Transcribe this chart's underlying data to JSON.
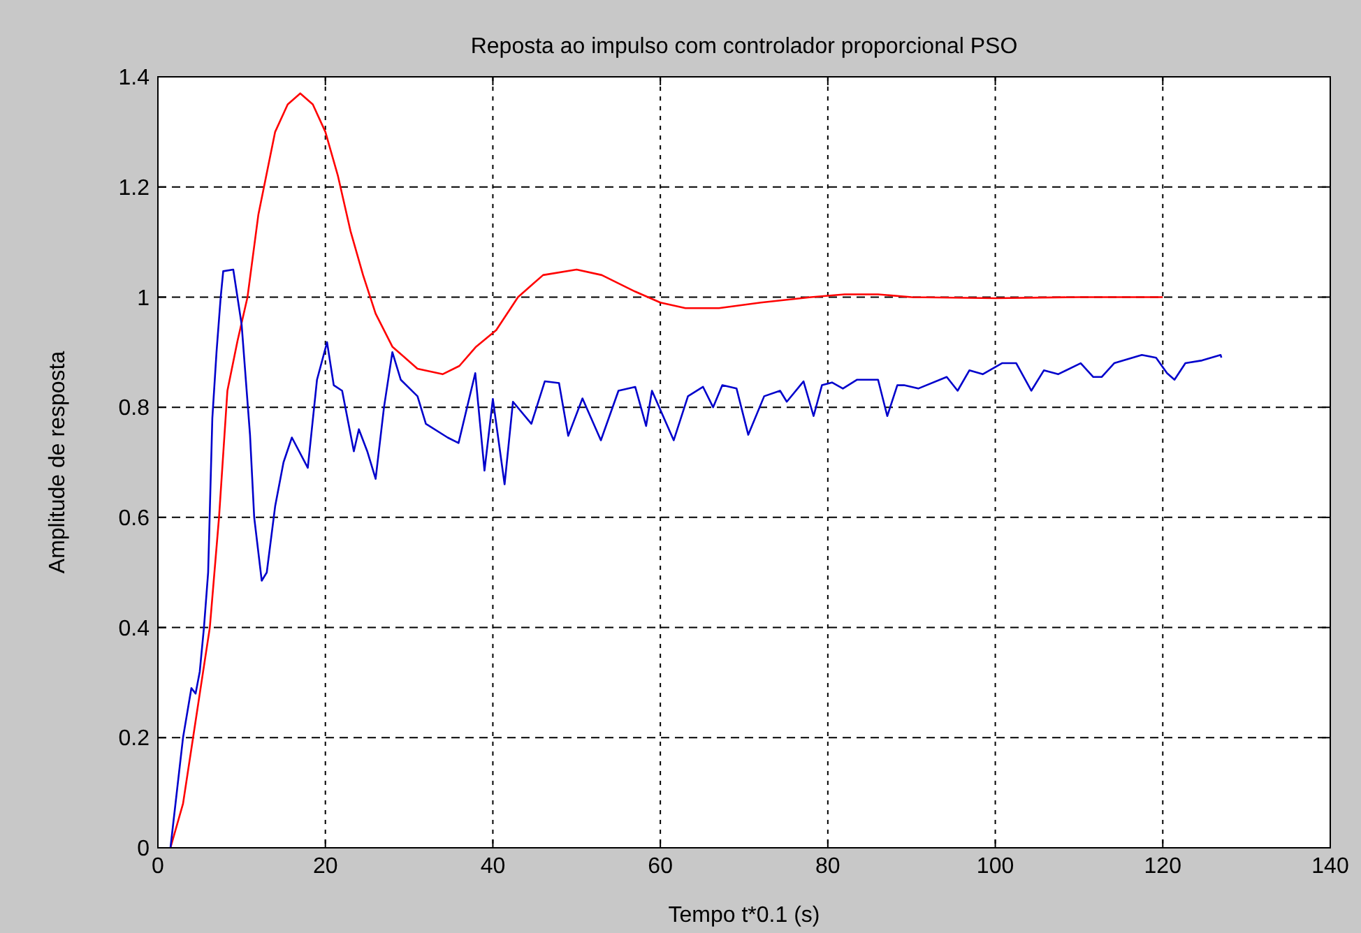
{
  "chart_data": {
    "type": "line",
    "title": "Reposta ao impulso com controlador proporcional PSO",
    "xlabel": "Tempo t*0.1 (s)",
    "ylabel": "Amplitude de resposta",
    "xlim": [
      0,
      140
    ],
    "ylim": [
      0,
      1.4
    ],
    "xticks": [
      0,
      20,
      40,
      60,
      80,
      100,
      120,
      140
    ],
    "yticks": [
      0,
      0.2,
      0.4,
      0.6,
      0.8,
      1,
      1.2,
      1.4
    ],
    "grid": true,
    "marker": "none",
    "line_style": "solid",
    "series": [
      {
        "color": "#ff0000",
        "x": [
          1.5,
          3,
          4.2,
          5.2,
          6.2,
          7.3,
          8.3,
          9.5,
          10.7,
          12,
          14,
          15.5,
          17,
          18.5,
          20,
          21.5,
          23,
          24.5,
          26,
          28,
          31,
          34,
          36,
          38,
          40.4,
          43,
          46,
          50,
          53,
          57,
          60,
          63,
          67,
          72,
          78,
          82,
          86,
          90,
          100,
          110,
          120
        ],
        "values": [
          0,
          0.08,
          0.2,
          0.3,
          0.4,
          0.6,
          0.83,
          0.92,
          1.0,
          1.15,
          1.3,
          1.35,
          1.37,
          1.35,
          1.3,
          1.22,
          1.12,
          1.04,
          0.97,
          0.91,
          0.87,
          0.86,
          0.875,
          0.91,
          0.94,
          1.0,
          1.04,
          1.05,
          1.04,
          1.01,
          0.99,
          0.98,
          0.98,
          0.99,
          1.0,
          1.005,
          1.005,
          1.0,
          0.998,
          1.0,
          1.0
        ]
      },
      {
        "color": "#0000cc",
        "x": [
          1.5,
          3,
          4,
          4.5,
          5,
          5.5,
          6,
          6.5,
          7,
          7.5,
          7.8,
          9,
          10,
          11,
          11.5,
          12.4,
          13,
          14,
          15,
          16,
          17.9,
          19,
          20.2,
          21,
          22,
          23.4,
          24,
          25,
          26,
          27,
          28,
          29,
          31,
          32,
          34.6,
          35.9,
          37.9,
          39,
          40,
          41.4,
          42.4,
          44.6,
          46.2,
          47.9,
          49,
          50.7,
          52.9,
          55,
          57,
          58.3,
          59,
          61.6,
          63.3,
          65.1,
          66.3,
          67.4,
          69.1,
          70.5,
          72.4,
          74.3,
          75.1,
          77.1,
          78.3,
          79.3,
          80.5,
          81.8,
          83.5,
          86,
          87.1,
          88.3,
          89.1,
          90.8,
          94.2,
          95.5,
          96.9,
          98.5,
          100.8,
          102.5,
          104.3,
          105.8,
          107.5,
          110.2,
          111.7,
          112.7,
          114.2,
          117.5,
          119.2,
          120.5,
          121.4,
          122.7,
          124.7,
          126.9,
          127
        ],
        "values": [
          0,
          0.2,
          0.29,
          0.28,
          0.32,
          0.4,
          0.5,
          0.78,
          0.9,
          1.0,
          1.047,
          1.05,
          0.95,
          0.75,
          0.6,
          0.485,
          0.5,
          0.62,
          0.7,
          0.745,
          0.69,
          0.85,
          0.918,
          0.84,
          0.83,
          0.72,
          0.76,
          0.72,
          0.67,
          0.8,
          0.9,
          0.85,
          0.82,
          0.77,
          0.745,
          0.735,
          0.862,
          0.685,
          0.815,
          0.66,
          0.81,
          0.77,
          0.847,
          0.844,
          0.748,
          0.816,
          0.74,
          0.83,
          0.837,
          0.766,
          0.83,
          0.74,
          0.82,
          0.837,
          0.8,
          0.84,
          0.834,
          0.75,
          0.82,
          0.83,
          0.81,
          0.847,
          0.784,
          0.84,
          0.845,
          0.834,
          0.85,
          0.85,
          0.784,
          0.84,
          0.84,
          0.834,
          0.855,
          0.83,
          0.867,
          0.86,
          0.88,
          0.88,
          0.83,
          0.867,
          0.86,
          0.88,
          0.855,
          0.855,
          0.88,
          0.895,
          0.89,
          0.862,
          0.85,
          0.88,
          0.885,
          0.895,
          0.89
        ]
      }
    ]
  }
}
